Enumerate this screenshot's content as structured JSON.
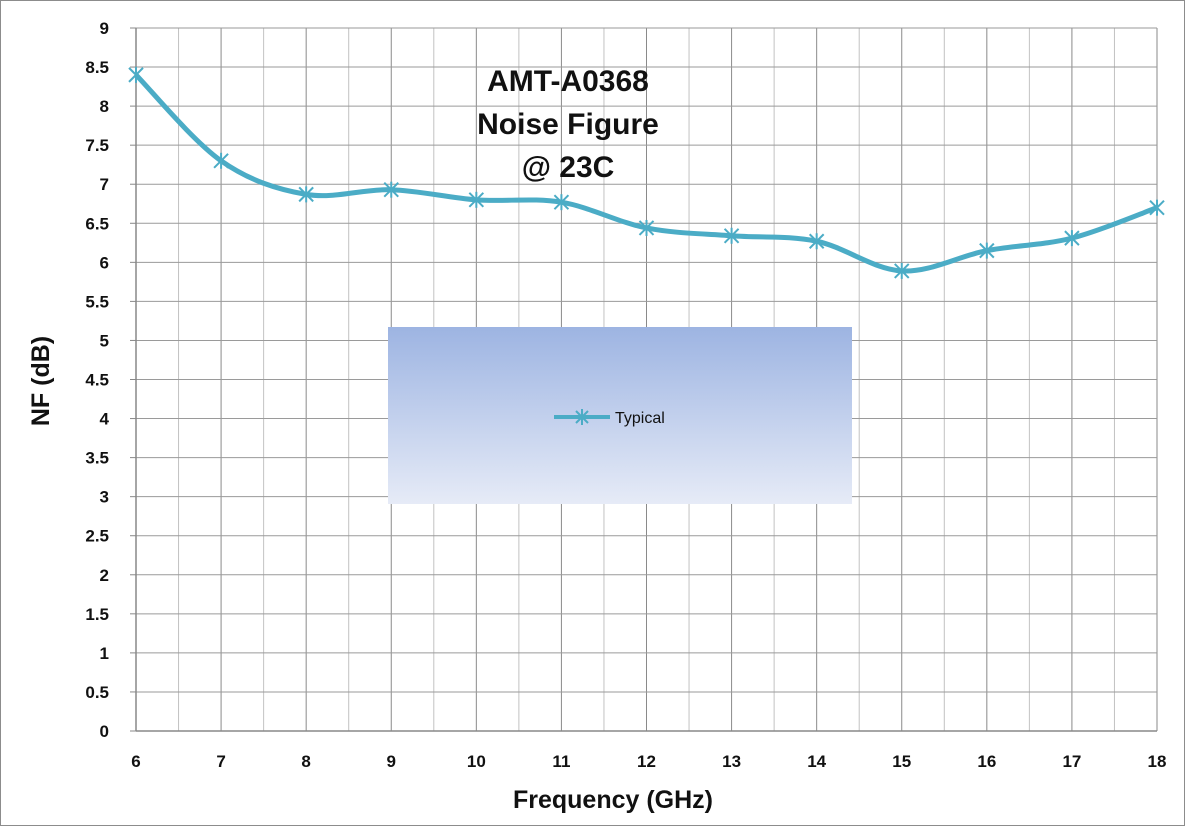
{
  "chart_data": {
    "type": "line",
    "title_lines": [
      "AMT-A0368",
      "Noise Figure",
      "@ 23C"
    ],
    "xlabel": "Frequency (GHz)",
    "ylabel": "NF (dB)",
    "x": [
      6,
      7,
      8,
      9,
      10,
      11,
      12,
      13,
      14,
      15,
      16,
      17,
      18
    ],
    "xlim": [
      6,
      18
    ],
    "ylim": [
      0,
      9
    ],
    "xticks": [
      6,
      7,
      8,
      9,
      10,
      11,
      12,
      13,
      14,
      15,
      16,
      17,
      18
    ],
    "yticks": [
      "0",
      "0.5",
      "1",
      "1.5",
      "2",
      "2.5",
      "3",
      "3.5",
      "4",
      "4.5",
      "5",
      "5.5",
      "6",
      "6.5",
      "7",
      "7.5",
      "8",
      "8.5",
      "9"
    ],
    "grid": true,
    "legend_position": "center",
    "series": [
      {
        "name": "Typical",
        "color": "#4bacc6",
        "marker": "star",
        "smooth": true,
        "values": [
          8.4,
          7.3,
          6.87,
          6.93,
          6.8,
          6.77,
          6.44,
          6.34,
          6.27,
          5.89,
          6.15,
          6.31,
          6.7
        ]
      }
    ]
  }
}
